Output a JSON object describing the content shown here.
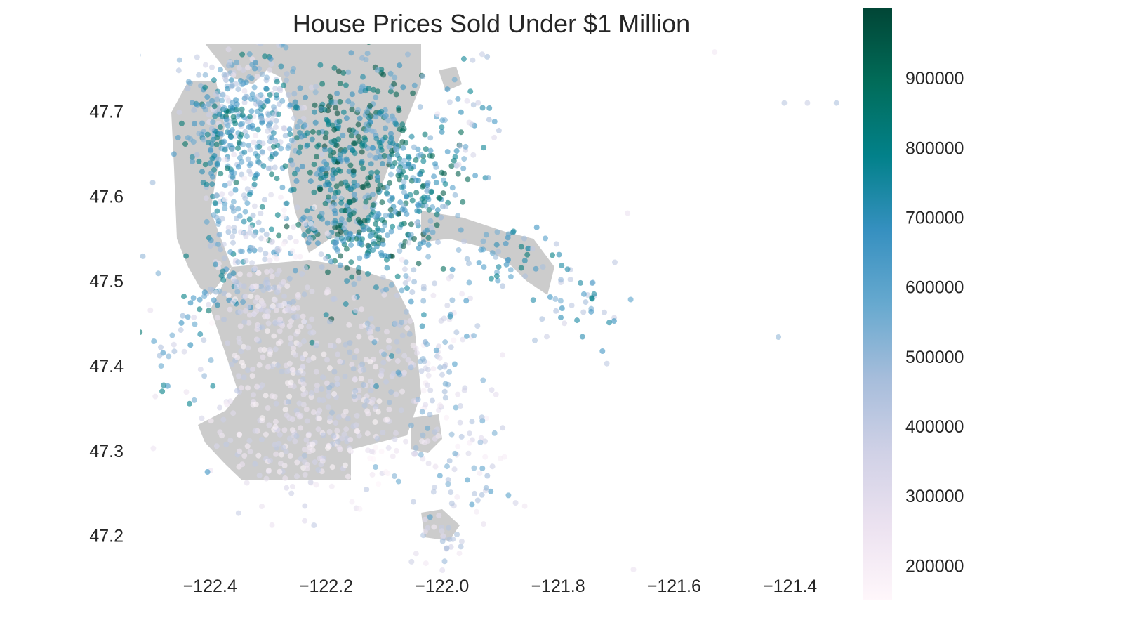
{
  "chart_data": {
    "type": "scatter",
    "title": "House Prices Sold Under $1 Million",
    "xlabel": "",
    "ylabel": "",
    "xlim": [
      -122.52,
      -121.31
    ],
    "ylim": [
      47.155,
      47.78
    ],
    "xticks": [
      -122.4,
      -122.2,
      -122.0,
      -121.8,
      -121.6,
      -121.4
    ],
    "xtick_labels": [
      "−122.4",
      "−122.2",
      "−122.0",
      "−121.8",
      "−121.6",
      "−121.4"
    ],
    "yticks": [
      47.2,
      47.3,
      47.4,
      47.5,
      47.6,
      47.7
    ],
    "ytick_labels": [
      "47.2",
      "47.3",
      "47.4",
      "47.5",
      "47.6",
      "47.7"
    ],
    "grid": false,
    "background_map": "King County land shapes (grey)",
    "colorbar": {
      "cmap": "PuBuGn",
      "range": [
        150000,
        1000000
      ],
      "ticks": [
        200000,
        300000,
        400000,
        500000,
        600000,
        700000,
        800000,
        900000
      ],
      "tick_labels": [
        "200000",
        "300000",
        "400000",
        "500000",
        "600000",
        "700000",
        "800000",
        "900000"
      ]
    },
    "color_scale": [
      "#fff7fb",
      "#ece2f0",
      "#d0d1e6",
      "#a6bddb",
      "#67a9cf",
      "#3690c0",
      "#02818a",
      "#016c59",
      "#014636"
    ],
    "map_gray": "#cccccc",
    "clusters": [
      {
        "lon": -122.35,
        "lat": 47.72,
        "spread": [
          0.05,
          0.04
        ],
        "n": 160,
        "price": [
          250000,
          700000
        ]
      },
      {
        "lon": -122.38,
        "lat": 47.67,
        "spread": [
          0.035,
          0.035
        ],
        "n": 140,
        "price": [
          450000,
          900000
        ]
      },
      {
        "lon": -122.29,
        "lat": 47.68,
        "spread": [
          0.035,
          0.04
        ],
        "n": 130,
        "price": [
          350000,
          850000
        ]
      },
      {
        "lon": -122.19,
        "lat": 47.63,
        "spread": [
          0.03,
          0.06
        ],
        "n": 170,
        "price": [
          600000,
          990000
        ]
      },
      {
        "lon": -122.12,
        "lat": 47.67,
        "spread": [
          0.04,
          0.07
        ],
        "n": 190,
        "price": [
          500000,
          970000
        ]
      },
      {
        "lon": -122.05,
        "lat": 47.61,
        "spread": [
          0.05,
          0.04
        ],
        "n": 170,
        "price": [
          500000,
          950000
        ]
      },
      {
        "lon": -122.14,
        "lat": 47.56,
        "spread": [
          0.06,
          0.02
        ],
        "n": 110,
        "price": [
          550000,
          990000
        ]
      },
      {
        "lon": -122.36,
        "lat": 47.55,
        "spread": [
          0.025,
          0.05
        ],
        "n": 110,
        "price": [
          300000,
          800000
        ]
      },
      {
        "lon": -122.3,
        "lat": 47.5,
        "spread": [
          0.05,
          0.05
        ],
        "n": 140,
        "price": [
          150000,
          500000
        ]
      },
      {
        "lon": -122.27,
        "lat": 47.42,
        "spread": [
          0.05,
          0.05
        ],
        "n": 150,
        "price": [
          150000,
          450000
        ]
      },
      {
        "lon": -122.23,
        "lat": 47.31,
        "spread": [
          0.08,
          0.035
        ],
        "n": 200,
        "price": [
          150000,
          420000
        ]
      },
      {
        "lon": -122.13,
        "lat": 47.38,
        "spread": [
          0.06,
          0.05
        ],
        "n": 110,
        "price": [
          150000,
          500000
        ]
      },
      {
        "lon": -122.02,
        "lat": 47.36,
        "spread": [
          0.05,
          0.06
        ],
        "n": 80,
        "price": [
          200000,
          600000
        ]
      },
      {
        "lon": -122.05,
        "lat": 47.47,
        "spread": [
          0.06,
          0.05
        ],
        "n": 90,
        "price": [
          250000,
          750000
        ]
      },
      {
        "lon": -121.88,
        "lat": 47.53,
        "spread": [
          0.04,
          0.02
        ],
        "n": 45,
        "price": [
          400000,
          850000
        ]
      },
      {
        "lon": -121.76,
        "lat": 47.48,
        "spread": [
          0.04,
          0.025
        ],
        "n": 40,
        "price": [
          300000,
          800000
        ]
      },
      {
        "lon": -122.45,
        "lat": 47.43,
        "spread": [
          0.035,
          0.06
        ],
        "n": 50,
        "price": [
          250000,
          850000
        ]
      },
      {
        "lon": -122.0,
        "lat": 47.2,
        "spread": [
          0.03,
          0.02
        ],
        "n": 30,
        "price": [
          200000,
          500000
        ]
      },
      {
        "lon": -121.95,
        "lat": 47.68,
        "spread": [
          0.025,
          0.05
        ],
        "n": 40,
        "price": [
          250000,
          800000
        ]
      },
      {
        "lon": -121.95,
        "lat": 47.29,
        "spread": [
          0.04,
          0.04
        ],
        "n": 45,
        "price": [
          200000,
          650000
        ]
      }
    ],
    "outliers": [
      {
        "lon": -121.41,
        "lat": 47.71,
        "price": 420000
      },
      {
        "lon": -121.37,
        "lat": 47.71,
        "price": 380000
      },
      {
        "lon": -121.32,
        "lat": 47.71,
        "price": 450000
      },
      {
        "lon": -121.42,
        "lat": 47.434,
        "price": 500000
      },
      {
        "lon": -121.68,
        "lat": 47.58,
        "price": 260000
      },
      {
        "lon": -121.84,
        "lat": 47.43,
        "price": 460000
      },
      {
        "lon": -121.67,
        "lat": 47.16,
        "price": 260000
      },
      {
        "lon": -121.53,
        "lat": 47.77,
        "price": 230000
      }
    ]
  }
}
